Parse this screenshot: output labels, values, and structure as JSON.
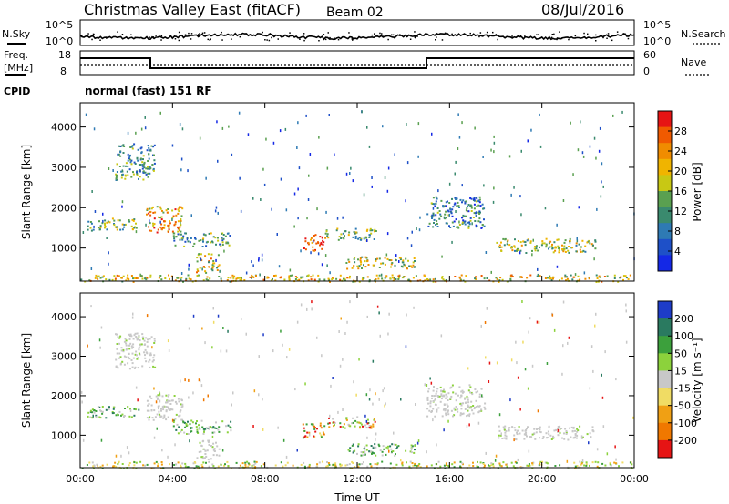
{
  "header": {
    "title": "Christmas Valley East (fitACF)",
    "beam": "Beam 02",
    "date": "08/Jul/2016"
  },
  "noise_panel": {
    "left_label": "N.Sky",
    "right_label": "N.Search",
    "left_ticks": [
      "10^5",
      "10^0"
    ],
    "right_ticks": [
      "10^5",
      "10^0"
    ]
  },
  "freq_panel": {
    "left_label_line1": "Freq.",
    "left_label_line2": "[MHz]",
    "right_label": "Nave",
    "left_ticks": [
      "18",
      "8"
    ],
    "right_ticks": [
      "60",
      "0"
    ]
  },
  "cpid": {
    "label": "CPID",
    "mode": "normal (fast) 151 RF"
  },
  "chart_data": [
    {
      "type": "heatmap",
      "title": "",
      "ylabel": "Slant Range [km]",
      "xlabel": "",
      "ylim": [
        180,
        4600
      ],
      "yticks": [
        "1000",
        "2000",
        "3000",
        "4000"
      ],
      "xticks": [
        "00:00",
        "04:00",
        "08:00",
        "12:00",
        "16:00",
        "20:00",
        "00:00"
      ],
      "colorbar": {
        "label": "Power [dB]",
        "ticks": [
          "4",
          "8",
          "12",
          "16",
          "20",
          "24",
          "28"
        ],
        "colors": [
          "#1428e6",
          "#1e50c8",
          "#2e7ab4",
          "#3a8a6e",
          "#5aa050",
          "#c8c814",
          "#f0b400",
          "#f08c00",
          "#f05a00",
          "#e61414"
        ]
      },
      "regions": [
        {
          "t0": 0.3,
          "t1": 2.5,
          "r0": 1450,
          "r1": 1750,
          "intensity": 0.45
        },
        {
          "t0": 2.8,
          "t1": 4.4,
          "r0": 1400,
          "r1": 2050,
          "intensity": 0.7
        },
        {
          "t0": 1.5,
          "t1": 3.2,
          "r0": 2700,
          "r1": 3600,
          "intensity": 0.35
        },
        {
          "t0": 4.0,
          "t1": 6.5,
          "r0": 1050,
          "r1": 1400,
          "intensity": 0.4
        },
        {
          "t0": 5.0,
          "t1": 6.0,
          "r0": 400,
          "r1": 900,
          "intensity": 0.6
        },
        {
          "t0": 9.6,
          "t1": 10.6,
          "r0": 950,
          "r1": 1350,
          "intensity": 0.9
        },
        {
          "t0": 10.6,
          "t1": 12.8,
          "r0": 1200,
          "r1": 1500,
          "intensity": 0.45
        },
        {
          "t0": 11.5,
          "t1": 14.5,
          "r0": 500,
          "r1": 800,
          "intensity": 0.55
        },
        {
          "t0": 15.0,
          "t1": 17.5,
          "r0": 1500,
          "r1": 2300,
          "intensity": 0.3
        },
        {
          "t0": 18.0,
          "t1": 22.3,
          "r0": 900,
          "r1": 1250,
          "intensity": 0.5
        },
        {
          "t0": 0.0,
          "t1": 24.0,
          "r0": 180,
          "r1": 350,
          "intensity": 0.6
        }
      ]
    },
    {
      "type": "heatmap",
      "title": "",
      "ylabel": "Slant Range [km]",
      "xlabel": "Time UT",
      "ylim": [
        180,
        4600
      ],
      "yticks": [
        "1000",
        "2000",
        "3000",
        "4000"
      ],
      "xticks": [
        "00:00",
        "04:00",
        "08:00",
        "12:00",
        "16:00",
        "20:00",
        "00:00"
      ],
      "colorbar": {
        "label": "Velocity [m s⁻¹]",
        "ticks": [
          "200",
          "100",
          "50",
          "15",
          "-15",
          "-50",
          "-100",
          "-200"
        ],
        "colors": [
          "#1e3cc8",
          "#2a7a60",
          "#3ca03c",
          "#8cd23c",
          "#c8c8c8",
          "#f0dc64",
          "#f0a014",
          "#f07800",
          "#e61414"
        ]
      },
      "regions": [
        {
          "t0": 0.3,
          "t1": 2.5,
          "r0": 1450,
          "r1": 1750,
          "vel": "pos"
        },
        {
          "t0": 2.8,
          "t1": 4.4,
          "r0": 1400,
          "r1": 2050,
          "vel": "gs"
        },
        {
          "t0": 1.5,
          "t1": 3.2,
          "r0": 2700,
          "r1": 3600,
          "vel": "gs"
        },
        {
          "t0": 4.0,
          "t1": 6.5,
          "r0": 1050,
          "r1": 1400,
          "vel": "pos"
        },
        {
          "t0": 5.0,
          "t1": 6.0,
          "r0": 400,
          "r1": 900,
          "vel": "gs"
        },
        {
          "t0": 9.6,
          "t1": 10.6,
          "r0": 950,
          "r1": 1350,
          "vel": "neg"
        },
        {
          "t0": 10.6,
          "t1": 12.8,
          "r0": 1200,
          "r1": 1500,
          "vel": "mix"
        },
        {
          "t0": 11.5,
          "t1": 14.5,
          "r0": 500,
          "r1": 800,
          "vel": "pos"
        },
        {
          "t0": 15.0,
          "t1": 17.5,
          "r0": 1500,
          "r1": 2300,
          "vel": "gs"
        },
        {
          "t0": 18.0,
          "t1": 22.3,
          "r0": 900,
          "r1": 1250,
          "vel": "gs"
        },
        {
          "t0": 0.0,
          "t1": 24.0,
          "r0": 180,
          "r1": 350,
          "vel": "ground"
        }
      ]
    }
  ],
  "colors": {
    "axis": "#000000",
    "background": "#ffffff"
  }
}
